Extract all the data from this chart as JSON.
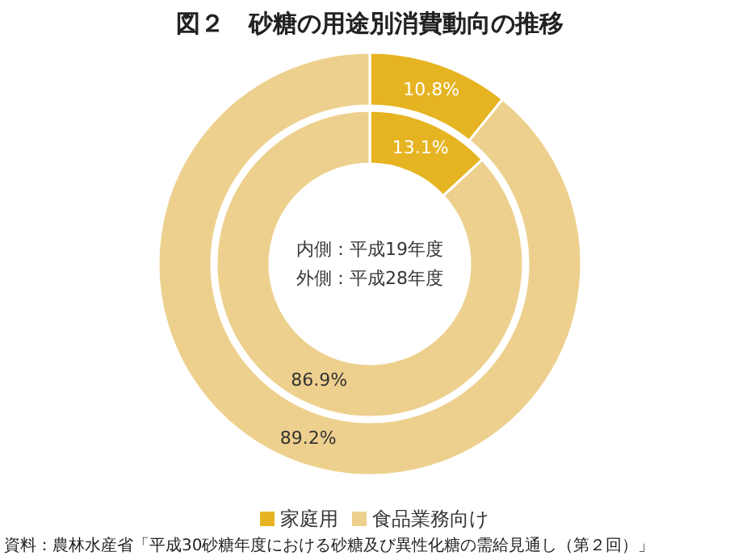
{
  "chart_data": {
    "type": "donut",
    "title": "図２　砂糖の用途別消費動向の推移",
    "categories": [
      "家庭用",
      "食品業務向け"
    ],
    "series": [
      {
        "values": [
          13.1,
          86.9
        ],
        "value_labels": [
          "13.1%",
          "86.9%"
        ]
      },
      {
        "values": [
          10.8,
          89.2
        ],
        "value_labels": [
          "10.8%",
          "89.2%"
        ]
      }
    ],
    "colors": [
      "#e6b422",
      "#eed08e"
    ],
    "legend": "bottom",
    "annotations": [
      "内側：平成19年度",
      "外側：平成28年度",
      "資料：農林水産省「平成30砂糖年度における砂糖及び異性化糖の需給見通し（第２回）」"
    ]
  }
}
